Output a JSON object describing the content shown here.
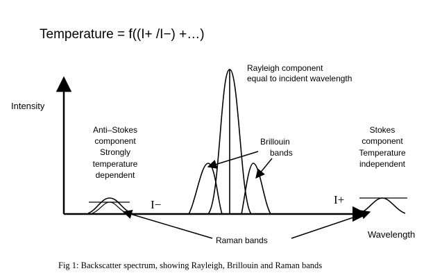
{
  "title": "Temperature = f((I+ /I−) +…)",
  "axes": {
    "y_label": "Intensity",
    "x_label": "Wavelength"
  },
  "labels": {
    "rayleigh": [
      "Rayleigh component",
      "equal to incident wavelength"
    ],
    "anti_stokes": [
      "Anti–Stokes",
      "component",
      "Strongly",
      "temperature",
      "dependent"
    ],
    "brillouin": [
      "Brillouin",
      "bands"
    ],
    "stokes": [
      "Stokes",
      "component",
      "Temperature",
      "independent"
    ],
    "i_minus": "I−",
    "i_plus": "I+",
    "raman": "Raman bands"
  },
  "caption": "Fig 1: Backscatter spectrum, showing Rayleigh, Brillouin and Raman bands"
}
